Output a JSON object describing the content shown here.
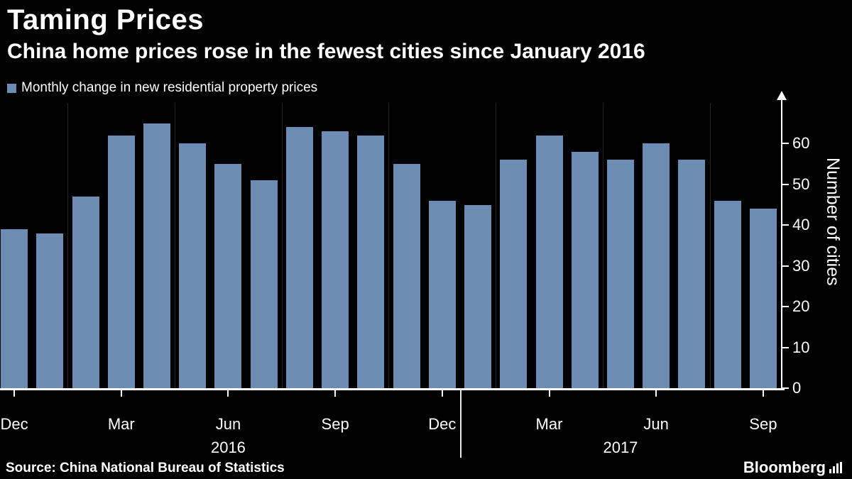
{
  "header": {
    "title": "Taming Prices",
    "subtitle": "China home prices rose in the fewest cities since January 2016"
  },
  "legend": {
    "label": "Monthly change in new residential property prices",
    "swatch_color": "#6d8cb3"
  },
  "chart_data": {
    "type": "bar",
    "title": "Taming Prices",
    "subtitle": "China home prices rose in the fewest cities since January 2016",
    "series_name": "Monthly change in new residential property prices",
    "xlabel": "",
    "ylabel": "Number of cities",
    "ylim": [
      0,
      70
    ],
    "yticks": [
      0,
      10,
      20,
      30,
      40,
      50,
      60
    ],
    "grid": "faint-vertical",
    "legend_position": "top-left",
    "bar_color": "#6d8cb3",
    "categories": [
      "Dec 2015",
      "Jan 2016",
      "Feb 2016",
      "Mar 2016",
      "Apr 2016",
      "May 2016",
      "Jun 2016",
      "Jul 2016",
      "Aug 2016",
      "Sep 2016",
      "Oct 2016",
      "Nov 2016",
      "Dec 2016",
      "Jan 2017",
      "Feb 2017",
      "Mar 2017",
      "Apr 2017",
      "May 2017",
      "Jun 2017",
      "Jul 2017",
      "Aug 2017",
      "Sep 2017"
    ],
    "values": [
      39,
      38,
      47,
      62,
      65,
      60,
      55,
      51,
      64,
      63,
      62,
      55,
      46,
      45,
      56,
      62,
      58,
      56,
      60,
      56,
      46,
      44
    ],
    "xticks": [
      {
        "index": 0,
        "label": "Dec"
      },
      {
        "index": 3,
        "label": "Mar"
      },
      {
        "index": 6,
        "label": "Jun"
      },
      {
        "index": 9,
        "label": "Sep"
      },
      {
        "index": 12,
        "label": "Dec"
      },
      {
        "index": 15,
        "label": "Mar"
      },
      {
        "index": 18,
        "label": "Jun"
      },
      {
        "index": 21,
        "label": "Sep"
      }
    ],
    "year_labels": [
      {
        "label": "2016",
        "index": 6
      },
      {
        "label": "2017",
        "index": 17
      }
    ],
    "year_divider_after_index": 12
  },
  "axis": {
    "ylabel": "Number of cities"
  },
  "footer": {
    "source": "Source: China National Bureau of Statistics",
    "brand": "Bloomberg"
  }
}
